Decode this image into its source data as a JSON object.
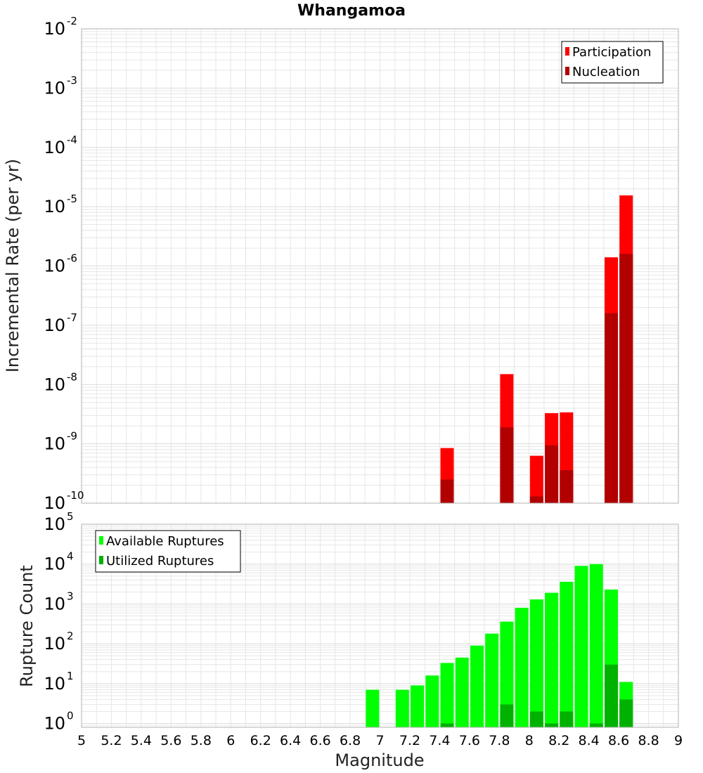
{
  "title": "Whangamoa",
  "xlabel": "Magnitude",
  "colors": {
    "participation": "#ff0000",
    "nucleation": "#b20000",
    "available": "#00ff00",
    "utilized": "#00b200",
    "grid": "#e6e6e6",
    "frame": "#b0b0b0"
  },
  "chart_data": [
    {
      "type": "bar",
      "ylabel": "Incremental Rate (per yr)",
      "yscale": "log",
      "ylim": [
        1e-10,
        0.01
      ],
      "xlim": [
        5,
        9
      ],
      "grid": true,
      "legend_position": "top-right",
      "series": [
        {
          "name": "Participation",
          "x": [
            7.45,
            7.85,
            8.05,
            8.15,
            8.25,
            8.55,
            8.65
          ],
          "values": [
            8.5e-10,
            1.5e-08,
            6.3e-10,
            3.3e-09,
            3.4e-09,
            1.4e-06,
            1.55e-05
          ]
        },
        {
          "name": "Nucleation",
          "x": [
            7.45,
            7.85,
            8.05,
            8.15,
            8.25,
            8.55,
            8.65
          ],
          "values": [
            2.5e-10,
            1.9e-09,
            1.3e-10,
            9.5e-10,
            3.6e-10,
            1.6e-07,
            1.6e-06
          ]
        }
      ],
      "ytick_exponents": [
        "-10",
        "-9",
        "-8",
        "-7",
        "-6",
        "-5",
        "-4",
        "-3",
        "-2"
      ]
    },
    {
      "type": "bar",
      "ylabel": "Rupture Count",
      "yscale": "log",
      "ylim": [
        0.8,
        100000
      ],
      "xlim": [
        5,
        9
      ],
      "grid": true,
      "legend_position": "top-left",
      "series": [
        {
          "name": "Available Ruptures",
          "x": [
            6.95,
            7.15,
            7.25,
            7.35,
            7.45,
            7.55,
            7.65,
            7.75,
            7.85,
            7.95,
            8.05,
            8.15,
            8.25,
            8.35,
            8.45,
            8.55,
            8.65
          ],
          "values": [
            7,
            7,
            9,
            16,
            33,
            45,
            90,
            180,
            360,
            800,
            1300,
            1900,
            3600,
            9000,
            10000,
            2300,
            11
          ]
        },
        {
          "name": "Utilized Ruptures",
          "x": [
            7.45,
            7.85,
            8.05,
            8.15,
            8.25,
            8.45,
            8.55,
            8.65
          ],
          "values": [
            1,
            3,
            2,
            1,
            2,
            1,
            30,
            4
          ]
        }
      ],
      "ytick_exponents": [
        "0",
        "1",
        "2",
        "3",
        "4",
        "5"
      ]
    }
  ],
  "xticks": [
    "5",
    "5.2",
    "5.4",
    "5.6",
    "5.8",
    "6",
    "6.2",
    "6.4",
    "6.6",
    "6.8",
    "7",
    "7.2",
    "7.4",
    "7.6",
    "7.8",
    "8",
    "8.2",
    "8.4",
    "8.6",
    "8.8",
    "9"
  ],
  "ytick_base": "10"
}
